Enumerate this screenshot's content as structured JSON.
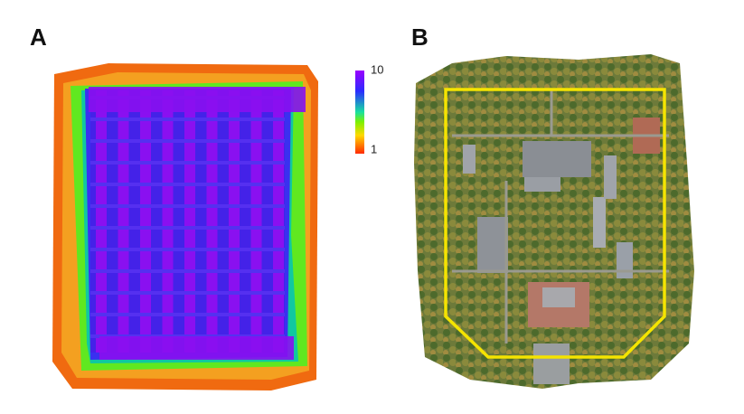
{
  "panels": [
    {
      "label": "A",
      "colorbar": {
        "max": 10,
        "min": 1
      }
    },
    {
      "label": "B"
    }
  ]
}
